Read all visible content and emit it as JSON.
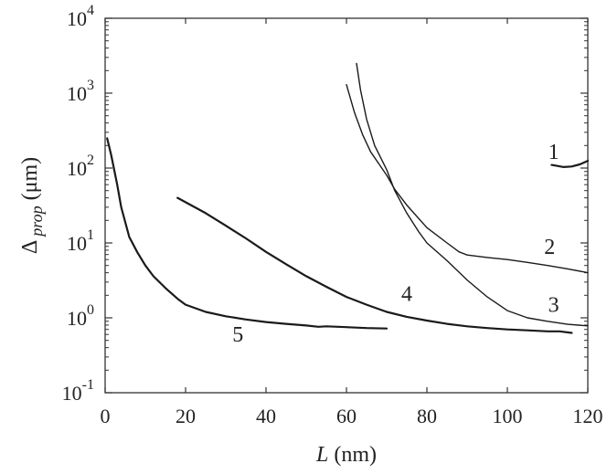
{
  "chart_data": {
    "type": "line",
    "title": "",
    "xlabel": {
      "italic": "L",
      "rest": " (nm)"
    },
    "ylabel": {
      "main": "Δ",
      "sub": "prop",
      "rest": " (μm)"
    },
    "xlim": [
      0,
      120
    ],
    "ylim": [
      0.1,
      10000
    ],
    "y_scale": "log",
    "grid": false,
    "legend": "none",
    "x_ticks": [
      "0",
      "20",
      "40",
      "60",
      "80",
      "100",
      "120"
    ],
    "y_ticks": [
      {
        "base": "10",
        "exp": "-1"
      },
      {
        "base": "10",
        "exp": "0"
      },
      {
        "base": "10",
        "exp": "1"
      },
      {
        "base": "10",
        "exp": "2"
      },
      {
        "base": "10",
        "exp": "3"
      },
      {
        "base": "10",
        "exp": "4"
      }
    ],
    "series": [
      {
        "label": "1",
        "stroke_width": 2.2,
        "points": [
          [
            111,
            110
          ],
          [
            112,
            108
          ],
          [
            114,
            103
          ],
          [
            116,
            105
          ],
          [
            118,
            112
          ],
          [
            120,
            125
          ]
        ]
      },
      {
        "label": "2",
        "stroke_width": 1.4,
        "points": [
          [
            60,
            1300
          ],
          [
            62,
            550
          ],
          [
            64,
            280
          ],
          [
            66,
            165
          ],
          [
            68,
            115
          ],
          [
            70,
            80
          ],
          [
            72,
            52
          ],
          [
            75,
            32
          ],
          [
            80,
            16
          ],
          [
            85,
            10
          ],
          [
            88,
            7.6
          ],
          [
            90,
            6.9
          ],
          [
            95,
            6.4
          ],
          [
            100,
            6.0
          ],
          [
            105,
            5.5
          ],
          [
            110,
            5.0
          ],
          [
            115,
            4.5
          ],
          [
            120,
            4.0
          ]
        ]
      },
      {
        "label": "3",
        "stroke_width": 1.4,
        "points": [
          [
            62.5,
            2500
          ],
          [
            63.5,
            1100
          ],
          [
            65,
            450
          ],
          [
            67,
            200
          ],
          [
            70,
            95
          ],
          [
            72,
            50
          ],
          [
            75,
            25
          ],
          [
            78,
            14
          ],
          [
            80,
            10
          ],
          [
            85,
            5.8
          ],
          [
            90,
            3.2
          ],
          [
            95,
            1.9
          ],
          [
            100,
            1.25
          ],
          [
            105,
            1.0
          ],
          [
            110,
            0.9
          ],
          [
            115,
            0.82
          ],
          [
            120,
            0.78
          ]
        ]
      },
      {
        "label": "4",
        "stroke_width": 2.2,
        "points": [
          [
            18,
            40
          ],
          [
            25,
            25
          ],
          [
            30,
            17
          ],
          [
            35,
            11.5
          ],
          [
            40,
            7.6
          ],
          [
            45,
            5.2
          ],
          [
            50,
            3.6
          ],
          [
            55,
            2.6
          ],
          [
            60,
            1.9
          ],
          [
            65,
            1.5
          ],
          [
            70,
            1.2
          ],
          [
            75,
            1.03
          ],
          [
            80,
            0.92
          ],
          [
            85,
            0.83
          ],
          [
            90,
            0.77
          ],
          [
            95,
            0.73
          ],
          [
            100,
            0.7
          ],
          [
            105,
            0.68
          ],
          [
            110,
            0.66
          ],
          [
            113,
            0.66
          ],
          [
            116,
            0.63
          ]
        ]
      },
      {
        "label": "5",
        "stroke_width": 2.2,
        "points": [
          [
            0.5,
            250
          ],
          [
            1.5,
            150
          ],
          [
            3,
            60
          ],
          [
            4,
            30
          ],
          [
            6,
            12
          ],
          [
            8,
            7.5
          ],
          [
            10,
            5
          ],
          [
            12,
            3.6
          ],
          [
            15,
            2.5
          ],
          [
            18,
            1.8
          ],
          [
            20,
            1.5
          ],
          [
            25,
            1.2
          ],
          [
            30,
            1.05
          ],
          [
            35,
            0.95
          ],
          [
            40,
            0.88
          ],
          [
            45,
            0.83
          ],
          [
            50,
            0.79
          ],
          [
            53,
            0.76
          ],
          [
            55,
            0.77
          ],
          [
            60,
            0.75
          ],
          [
            65,
            0.73
          ],
          [
            70,
            0.72
          ]
        ]
      }
    ],
    "annotations": [
      {
        "text": "1",
        "x": 111.5,
        "y": 165
      },
      {
        "text": "2",
        "x": 110.5,
        "y": 9
      },
      {
        "text": "3",
        "x": 111.5,
        "y": 1.5
      },
      {
        "text": "4",
        "x": 75,
        "y": 2.1
      },
      {
        "text": "5",
        "x": 33,
        "y": 0.6
      }
    ]
  }
}
